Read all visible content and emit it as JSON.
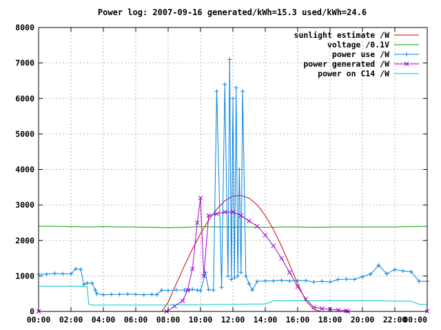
{
  "chart_data": {
    "type": "line",
    "title": "Power log: 2007-09-16 generated/kWh=15.3 used/kWh=24.6",
    "xlabel": "",
    "ylabel": "",
    "xlim": [
      0,
      24
    ],
    "ylim": [
      0,
      8000
    ],
    "grid": true,
    "legend_position": "top-right",
    "x_ticks": [
      {
        "value": 0,
        "label": "00:00"
      },
      {
        "value": 2,
        "label": "02:00"
      },
      {
        "value": 4,
        "label": "04:00"
      },
      {
        "value": 6,
        "label": "06:00"
      },
      {
        "value": 8,
        "label": "08:00"
      },
      {
        "value": 10,
        "label": "10:00"
      },
      {
        "value": 12,
        "label": "12:00"
      },
      {
        "value": 14,
        "label": "14:00"
      },
      {
        "value": 16,
        "label": "16:00"
      },
      {
        "value": 18,
        "label": "18:00"
      },
      {
        "value": 20,
        "label": "20:00"
      },
      {
        "value": 22,
        "label": "22:00"
      },
      {
        "value": 24,
        "label": "00:00"
      }
    ],
    "y_ticks": [
      {
        "value": 0,
        "label": "0"
      },
      {
        "value": 1000,
        "label": "1000"
      },
      {
        "value": 2000,
        "label": "2000"
      },
      {
        "value": 3000,
        "label": "3000"
      },
      {
        "value": 4000,
        "label": "4000"
      },
      {
        "value": 5000,
        "label": "5000"
      },
      {
        "value": 6000,
        "label": "6000"
      },
      {
        "value": 7000,
        "label": "7000"
      },
      {
        "value": 8000,
        "label": "8000"
      }
    ],
    "series": [
      {
        "name": "sunlight estimate /W",
        "color": "#cc0000",
        "marker": "none",
        "x": [
          0,
          7.6,
          8.0,
          8.5,
          9.0,
          9.5,
          10.0,
          10.5,
          11.0,
          11.5,
          12.0,
          12.5,
          13.0,
          13.5,
          14.0,
          14.5,
          15.0,
          15.5,
          16.0,
          16.5,
          17.0,
          17.4,
          24
        ],
        "y": [
          0,
          0,
          260,
          780,
          1280,
          1760,
          2190,
          2570,
          2880,
          3120,
          3250,
          3270,
          3190,
          3000,
          2700,
          2310,
          1840,
          1320,
          780,
          300,
          60,
          0,
          0
        ]
      },
      {
        "name": "voltage /0.1V",
        "color": "#00a000",
        "marker": "none",
        "x": [
          0,
          1,
          2,
          3,
          4,
          5,
          6,
          7,
          8,
          9,
          10,
          11,
          12,
          13,
          14,
          15,
          16,
          17,
          18,
          19,
          20,
          21,
          22,
          23,
          24
        ],
        "y": [
          2400,
          2400,
          2390,
          2380,
          2390,
          2380,
          2380,
          2370,
          2360,
          2370,
          2390,
          2380,
          2380,
          2380,
          2370,
          2380,
          2380,
          2370,
          2380,
          2380,
          2380,
          2380,
          2380,
          2390,
          2400
        ]
      },
      {
        "name": "power use /W",
        "color": "#0080e0",
        "marker": "plus",
        "x": [
          0,
          0.5,
          1,
          1.5,
          2,
          2.3,
          2.6,
          2.8,
          3.0,
          3.3,
          3.5,
          3.6,
          4.0,
          4.5,
          5,
          5.5,
          6,
          6.5,
          7,
          7.3,
          7.6,
          8,
          8.5,
          9,
          9.3,
          9.5,
          9.8,
          10,
          10.3,
          10.5,
          10.8,
          11,
          11.3,
          11.5,
          11.7,
          11.8,
          11.9,
          12.0,
          12.1,
          12.2,
          12.3,
          12.4,
          12.5,
          12.6,
          12.8,
          13.0,
          13.2,
          13.5,
          14,
          14.5,
          15,
          15.5,
          16,
          16.5,
          17,
          17.5,
          18,
          18.5,
          19,
          19.5,
          20,
          20.5,
          21,
          21.5,
          22,
          22.5,
          23,
          23.5,
          24
        ],
        "y": [
          1050,
          1050,
          1070,
          1060,
          1060,
          1200,
          1190,
          760,
          800,
          800,
          600,
          500,
          470,
          480,
          480,
          490,
          480,
          470,
          480,
          470,
          600,
          590,
          600,
          600,
          600,
          620,
          600,
          580,
          1100,
          610,
          600,
          6200,
          680,
          6400,
          1000,
          7100,
          900,
          6000,
          950,
          6300,
          1000,
          4000,
          1100,
          6200,
          1000,
          780,
          600,
          850,
          860,
          860,
          880,
          860,
          870,
          870,
          830,
          850,
          830,
          900,
          910,
          900,
          980,
          1050,
          1300,
          1060,
          1180,
          1140,
          1120,
          850,
          850
        ]
      },
      {
        "name": "power generated /W",
        "color": "#a000d0",
        "marker": "cross",
        "x": [
          0,
          7.9,
          8.4,
          8.9,
          9.2,
          9.5,
          9.8,
          10.0,
          10.2,
          10.5,
          11.0,
          11.5,
          12.0,
          12.5,
          13.0,
          13.5,
          14.0,
          14.5,
          15.0,
          15.5,
          16.0,
          16.5,
          17.0,
          17.5,
          18.0,
          18.5,
          19.0,
          19.1,
          24
        ],
        "y": [
          0,
          0,
          150,
          300,
          600,
          1200,
          2500,
          3200,
          1000,
          2700,
          2750,
          2800,
          2800,
          2700,
          2550,
          2400,
          2150,
          1850,
          1500,
          1100,
          700,
          350,
          120,
          80,
          60,
          40,
          20,
          0,
          0
        ]
      },
      {
        "name": "power on C14 /W",
        "color": "#00c8c8",
        "marker": "none",
        "x": [
          0,
          1,
          2,
          3.0,
          3.1,
          3.3,
          3.5,
          4,
          6,
          7,
          7.5,
          8,
          9,
          10,
          11,
          12,
          13,
          14,
          14.5,
          15,
          16,
          17,
          18,
          19,
          20,
          21,
          22,
          23,
          23.5,
          24
        ],
        "y": [
          710,
          710,
          710,
          700,
          200,
          180,
          180,
          180,
          180,
          180,
          180,
          180,
          190,
          190,
          200,
          200,
          210,
          210,
          300,
          300,
          300,
          300,
          310,
          300,
          300,
          300,
          290,
          290,
          200,
          200
        ]
      }
    ]
  }
}
